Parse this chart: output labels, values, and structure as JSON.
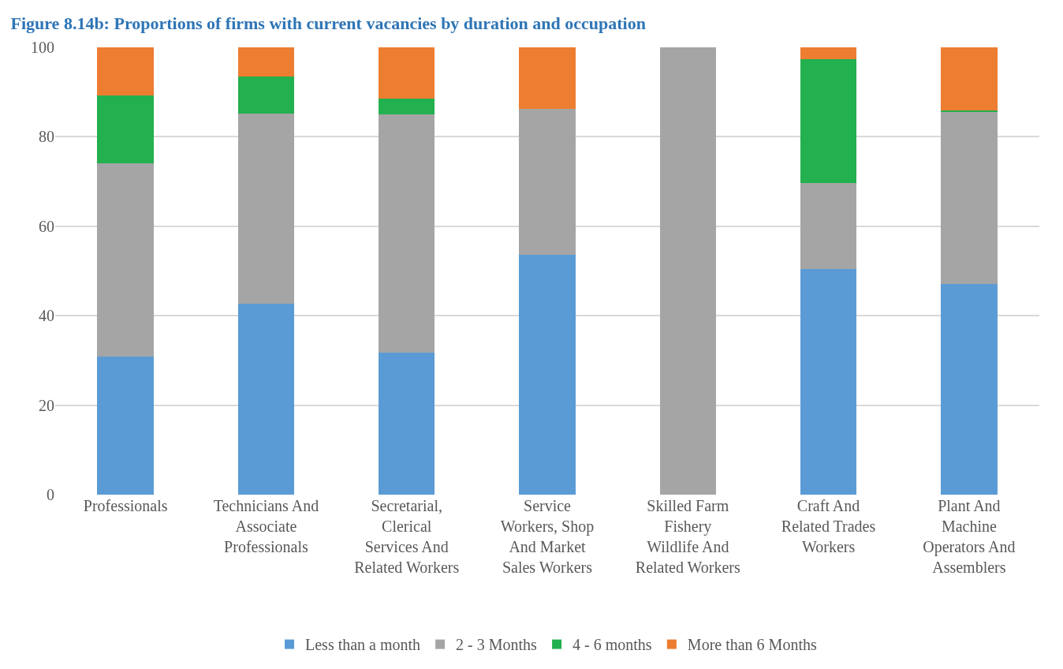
{
  "chart_data": {
    "type": "bar",
    "title": "Figure 8.14b: Proportions of firms with current vacancies by duration and occupation",
    "categories": [
      "Professionals",
      "Technicians And Associate Professionals",
      "Secretarial, Clerical Services And Related Workers",
      "Service Workers, Shop And Market Sales Workers",
      "Skilled Farm Fishery Wildlife And Related Workers",
      "Craft And Related Trades Workers",
      "Plant And Machine Operators And Assemblers"
    ],
    "series": [
      {
        "name": "Less than a month",
        "color": "#5b9bd5",
        "values": [
          30.8,
          42.6,
          31.7,
          53.7,
          0,
          50.4,
          47.1
        ]
      },
      {
        "name": "2 - 3 Months",
        "color": "#a5a5a5",
        "values": [
          43.3,
          42.6,
          53.3,
          32.6,
          100,
          19.2,
          38.5
        ]
      },
      {
        "name": "4 - 6 months",
        "color": "#23b04f",
        "values": [
          15.1,
          8.2,
          3.5,
          0,
          0,
          27.8,
          0.3
        ]
      },
      {
        "name": "More than 6 Months",
        "color": "#ed7d31",
        "values": [
          10.8,
          6.6,
          11.5,
          13.7,
          0,
          2.6,
          14.1
        ]
      }
    ],
    "stacked": true,
    "ylim": [
      0,
      100
    ],
    "yticks": [
      0,
      20,
      40,
      60,
      80,
      100
    ],
    "grid": "y",
    "legend": "bottom"
  }
}
